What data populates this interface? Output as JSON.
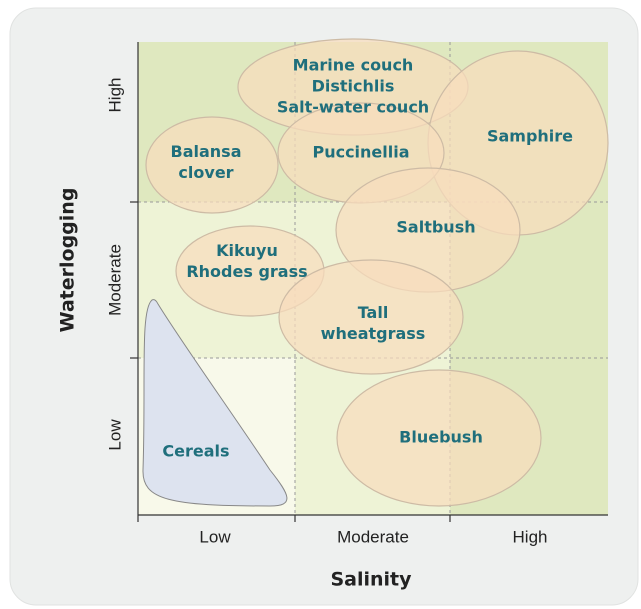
{
  "axes": {
    "x": {
      "title": "Salinity",
      "ticks": [
        "Low",
        "Moderate",
        "High"
      ]
    },
    "y": {
      "title": "Waterlogging",
      "ticks": [
        "Low",
        "Moderate",
        "High"
      ]
    }
  },
  "regions": [
    {
      "label": [
        "Marine couch",
        "Distichlis",
        "Salt-water couch"
      ]
    },
    {
      "label": [
        "Samphire"
      ]
    },
    {
      "label": [
        "Puccinellia"
      ]
    },
    {
      "label": [
        "Balansa",
        "clover"
      ]
    },
    {
      "label": [
        "Saltbush"
      ]
    },
    {
      "label": [
        "Kikuyu",
        "Rhodes grass"
      ]
    },
    {
      "label": [
        "Tall",
        "wheatgrass"
      ]
    },
    {
      "label": [
        "Bluebush"
      ]
    },
    {
      "label": [
        "Cereals"
      ]
    }
  ]
}
